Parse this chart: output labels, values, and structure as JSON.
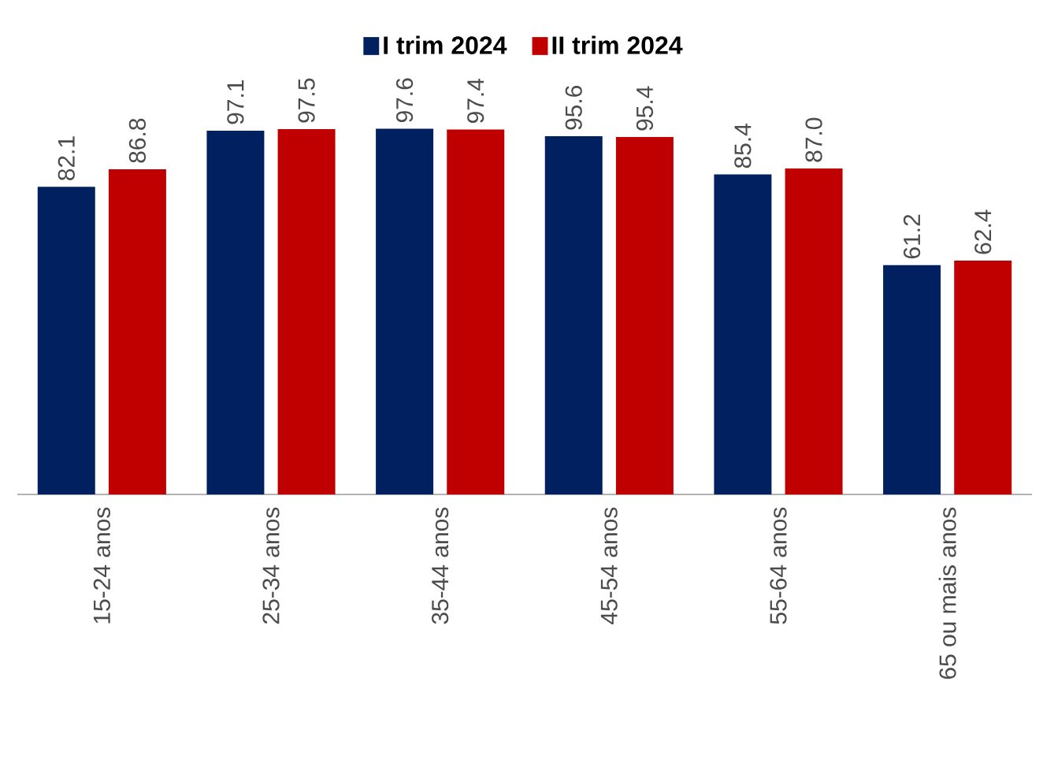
{
  "chart_data": {
    "type": "bar",
    "categories": [
      "15-24 anos",
      "25-34 anos",
      "35-44 anos",
      "45-54 anos",
      "55-64 anos",
      "65 ou mais anos"
    ],
    "series": [
      {
        "name": "I trim 2024",
        "color": "#002060",
        "values": [
          82.1,
          97.1,
          97.6,
          95.6,
          85.4,
          61.2
        ],
        "value_labels": [
          "82.1",
          "97.1",
          "97.6",
          "95.6",
          "85.4",
          "61.2"
        ]
      },
      {
        "name": "II trim 2024",
        "color": "#c00000",
        "values": [
          86.8,
          97.5,
          97.4,
          95.4,
          87.0,
          62.4
        ],
        "value_labels": [
          "86.8",
          "97.5",
          "97.4",
          "95.4",
          "87.0",
          "62.4"
        ]
      }
    ],
    "legend": "top"
  }
}
